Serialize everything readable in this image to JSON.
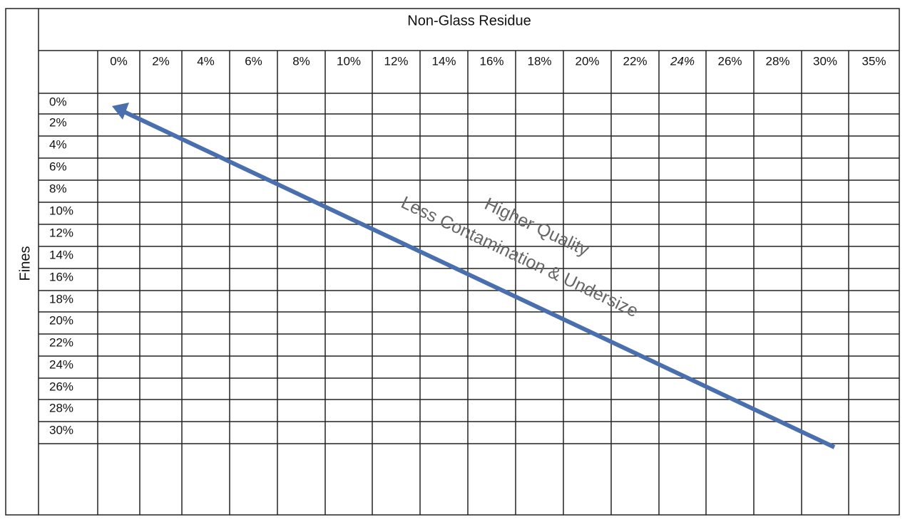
{
  "table": {
    "title": "Non-Glass Residue",
    "row_axis": "Fines",
    "columns": [
      "0%",
      "2%",
      "4%",
      "6%",
      "8%",
      "10%",
      "12%",
      "14%",
      "16%",
      "18%",
      "20%",
      "22%",
      "24%",
      "26%",
      "28%",
      "30%",
      "35%"
    ],
    "rows": [
      "0%",
      "2%",
      "4%",
      "6%",
      "8%",
      "10%",
      "12%",
      "14%",
      "16%",
      "18%",
      "20%",
      "22%",
      "24%",
      "26%",
      "28%",
      "30%"
    ]
  },
  "arrow": {
    "labels": [
      "Higher Quality",
      "Less Contamination & Undersize"
    ]
  }
}
